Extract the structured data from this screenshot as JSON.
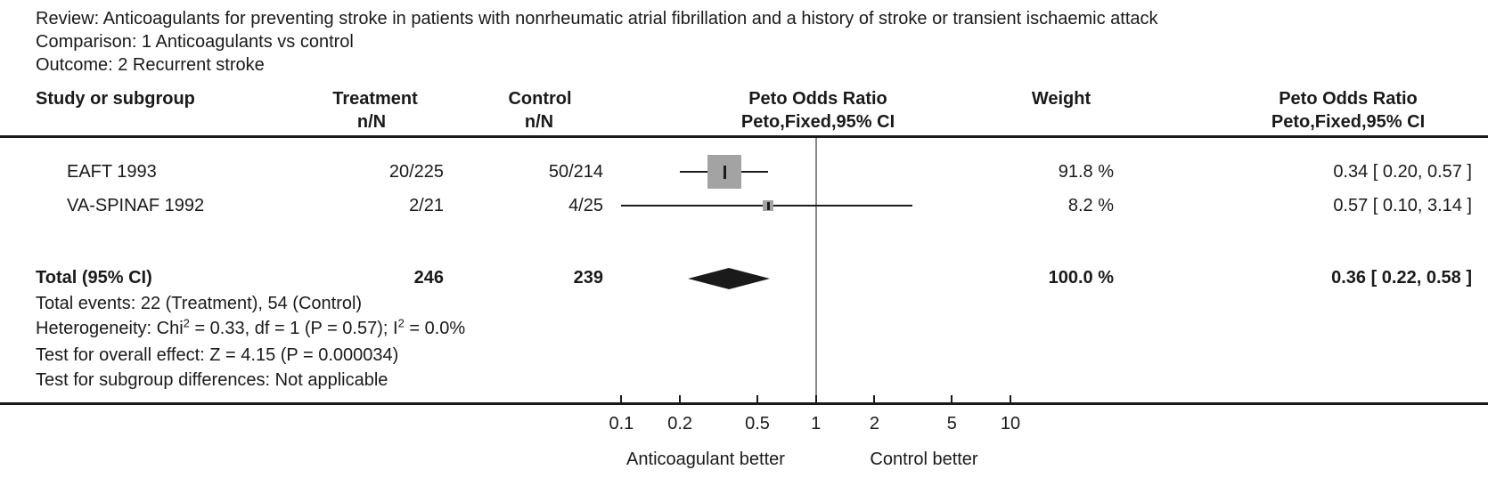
{
  "meta": {
    "review": "Review: Anticoagulants for preventing stroke in patients with nonrheumatic atrial fibrillation and a history of stroke or transient ischaemic attack",
    "comparison": "Comparison: 1 Anticoagulants vs control",
    "outcome": "Outcome: 2 Recurrent stroke"
  },
  "columns": {
    "study": "Study or subgroup",
    "treatment": "Treatment",
    "control": "Control",
    "n_of_n": "n/N",
    "plot_title": "Peto Odds Ratio",
    "plot_subtitle": "Peto,Fixed,95% CI",
    "weight": "Weight",
    "text_title": "Peto Odds Ratio",
    "text_subtitle": "Peto,Fixed,95% CI"
  },
  "chart_data": {
    "type": "forest",
    "effect_measure": "Peto Odds Ratio, Peto, Fixed, 95% CI",
    "x_axis": {
      "scale": "log",
      "range": [
        0.1,
        10
      ],
      "ticks": [
        0.1,
        0.2,
        0.5,
        1,
        2,
        5,
        10
      ],
      "tick_labels": [
        "0.1",
        "0.2",
        "0.5",
        "1",
        "2",
        "5",
        "10"
      ],
      "null_value": 1
    },
    "studies": [
      {
        "name": "EAFT 1993",
        "treatment_nN": "20/225",
        "control_nN": "50/214",
        "or": 0.34,
        "ci_low": 0.2,
        "ci_high": 0.57,
        "weight_pct": 91.8,
        "weight_label": "91.8 %",
        "ci_label": "0.34 [ 0.20, 0.57 ]"
      },
      {
        "name": "VA-SPINAF 1992",
        "treatment_nN": "2/21",
        "control_nN": "4/25",
        "or": 0.57,
        "ci_low": 0.1,
        "ci_high": 3.14,
        "weight_pct": 8.2,
        "weight_label": "8.2 %",
        "ci_label": "0.57 [ 0.10, 3.14 ]"
      }
    ],
    "total": {
      "label": "Total (95% CI)",
      "treatment_total": "246",
      "control_total": "239",
      "or": 0.36,
      "ci_low": 0.22,
      "ci_high": 0.58,
      "weight_label": "100.0 %",
      "ci_label": "0.36 [ 0.22, 0.58 ]"
    },
    "footer_left": "Anticoagulant better",
    "footer_right": "Control better"
  },
  "stats": {
    "total_events": "Total events: 22 (Treatment), 54 (Control)",
    "heterogeneity_parts": [
      "Heterogeneity: Chi",
      "2",
      " = 0.33, df = 1 (P = 0.57); I",
      "2",
      " = 0.0%"
    ],
    "overall_effect": "Test for overall effect: Z = 4.15 (P = 0.000034)",
    "subgroup_differences": "Test for subgroup differences: Not applicable"
  },
  "colors": {
    "text": "#1a1a1a",
    "square": "#a3a3a3",
    "diamond": "#1a1a1a",
    "ci_line": "#1a1a1a",
    "null_line": "#8a8a8a"
  }
}
